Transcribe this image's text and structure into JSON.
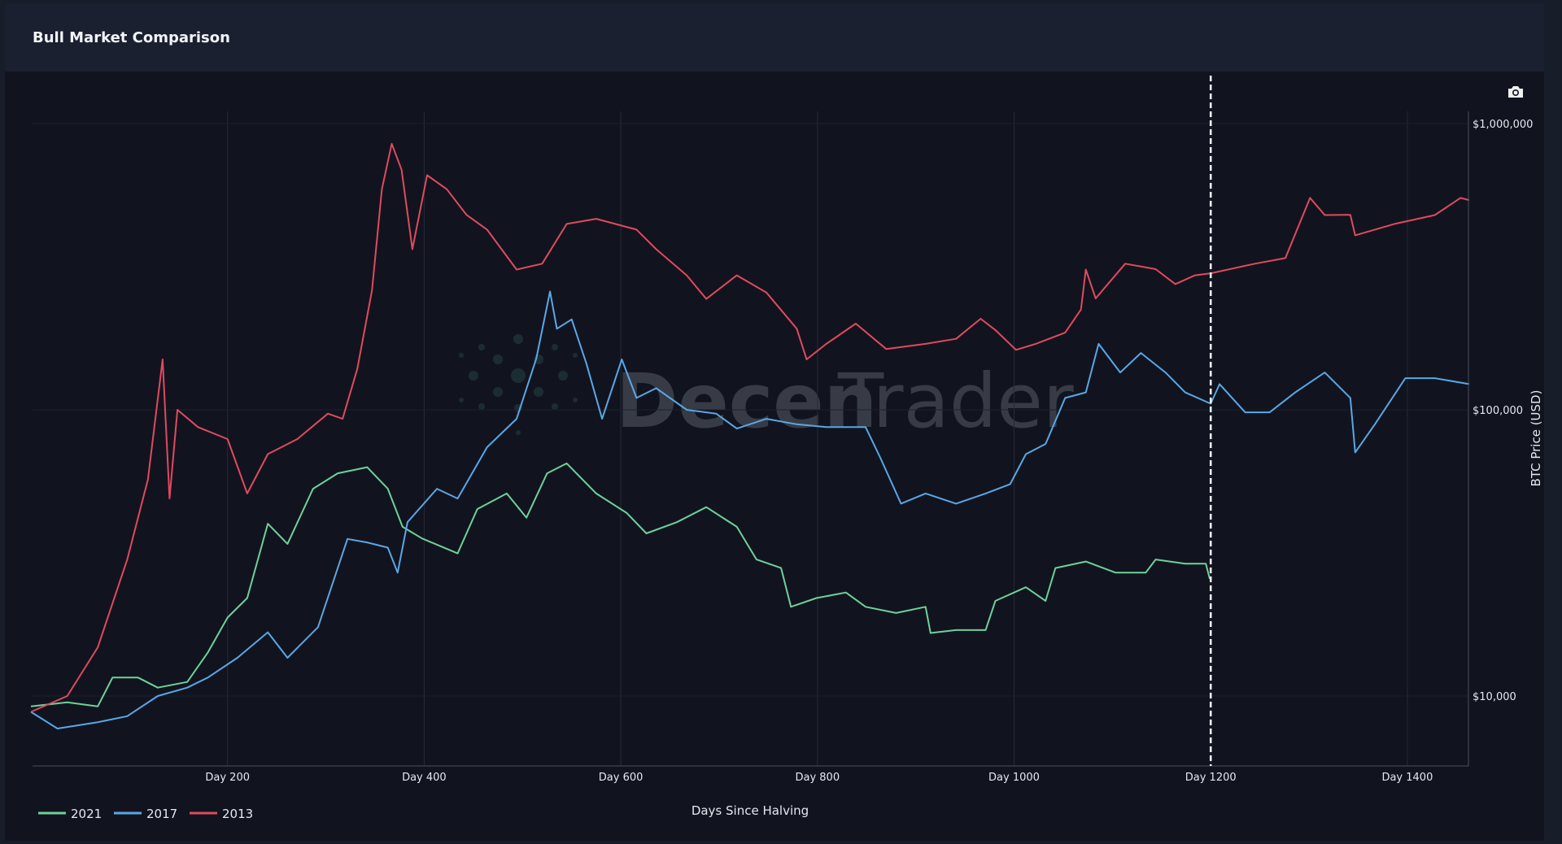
{
  "header": {
    "title": "Bull Market Comparison"
  },
  "toolbar": {
    "icon": "camera-icon"
  },
  "watermark": {
    "part1": "Decen",
    "part2": "Trader"
  },
  "chart_data": {
    "type": "line",
    "title": "Bull Market Comparison",
    "xlabel": "Days Since Halving",
    "ylabel": "BTC Price (USD)",
    "yscale": "log",
    "xlim": [
      0,
      1475
    ],
    "ylim": [
      5700,
      1100000
    ],
    "x_ticks": [
      200,
      400,
      600,
      800,
      1000,
      1200,
      1400
    ],
    "x_tick_labels": [
      "Day 200",
      "Day 400",
      "Day 600",
      "Day 800",
      "Day 1000",
      "Day 1200",
      "Day 1400"
    ],
    "y_ticks": [
      10000,
      100000,
      1000000
    ],
    "y_tick_labels": [
      "$10,000",
      "$100,000",
      "$1,000,000"
    ],
    "marker_line_day": 1200,
    "legend_position": "bottom-left",
    "grid": true,
    "series": [
      {
        "name": "2021",
        "color": "#6fd19a",
        "x": [
          0,
          37,
          68,
          83,
          109,
          129,
          159,
          180,
          200,
          220,
          241,
          261,
          287,
          312,
          342,
          363,
          378,
          398,
          434,
          454,
          484,
          504,
          525,
          545,
          575,
          606,
          626,
          657,
          687,
          718,
          738,
          763,
          773,
          799,
          829,
          849,
          880,
          910,
          915,
          941,
          971,
          981,
          1012,
          1032,
          1042,
          1073,
          1103,
          1134,
          1144,
          1174,
          1195,
          1199
        ],
        "y": [
          9200,
          9500,
          9200,
          11600,
          11600,
          10700,
          11200,
          14200,
          18800,
          22000,
          40000,
          34000,
          53000,
          60000,
          63000,
          53000,
          39000,
          35500,
          31500,
          45000,
          51000,
          42000,
          60000,
          65000,
          51000,
          43600,
          37000,
          40500,
          45700,
          39000,
          30000,
          28000,
          20500,
          22000,
          23000,
          20500,
          19500,
          20500,
          16600,
          17000,
          17000,
          21500,
          24000,
          21500,
          28000,
          29500,
          27000,
          27000,
          30000,
          29000,
          29000,
          25700
        ]
      },
      {
        "name": "2017",
        "color": "#5aa7e6",
        "x": [
          0,
          27,
          68,
          98,
          129,
          159,
          180,
          210,
          241,
          261,
          292,
          322,
          342,
          363,
          373,
          383,
          413,
          434,
          464,
          494,
          514,
          528,
          535,
          550,
          565,
          581,
          601,
          616,
          636,
          667,
          697,
          718,
          748,
          779,
          809,
          849,
          864,
          885,
          910,
          941,
          971,
          996,
          1012,
          1032,
          1052,
          1073,
          1086,
          1108,
          1129,
          1154,
          1174,
          1200,
          1209,
          1235,
          1260,
          1286,
          1316,
          1342,
          1347,
          1367,
          1398,
          1428,
          1463
        ],
        "y": [
          8800,
          7700,
          8100,
          8500,
          10000,
          10700,
          11600,
          13600,
          16700,
          13600,
          17400,
          35400,
          34400,
          33000,
          27000,
          40500,
          53000,
          49000,
          74000,
          93000,
          151000,
          259000,
          192000,
          207000,
          145000,
          93000,
          150000,
          110000,
          119000,
          100000,
          97000,
          86000,
          93000,
          89000,
          87000,
          87000,
          68000,
          47000,
          51000,
          47000,
          51000,
          55000,
          70000,
          76000,
          110000,
          115000,
          170000,
          135000,
          158000,
          135000,
          115000,
          105000,
          123000,
          98000,
          98000,
          115000,
          135000,
          110000,
          71000,
          89000,
          129000,
          129000,
          123000
        ]
      },
      {
        "name": "2013",
        "color": "#e04a5f",
        "x": [
          0,
          37,
          68,
          98,
          119,
          134,
          141,
          149,
          170,
          200,
          220,
          241,
          271,
          302,
          317,
          332,
          347,
          357,
          367,
          377,
          388,
          403,
          423,
          443,
          464,
          494,
          520,
          545,
          575,
          616,
          636,
          667,
          687,
          718,
          748,
          779,
          789,
          809,
          839,
          870,
          910,
          941,
          966,
          981,
          1002,
          1022,
          1052,
          1068,
          1073,
          1083,
          1113,
          1144,
          1164,
          1184,
          1200,
          1245,
          1276,
          1301,
          1316,
          1342,
          1347,
          1388,
          1428,
          1454,
          1463
        ],
        "y": [
          8800,
          10000,
          14800,
          30000,
          57000,
          150000,
          49000,
          100000,
          87000,
          79000,
          51000,
          70000,
          79000,
          97000,
          93000,
          139000,
          262000,
          590000,
          850000,
          690000,
          364000,
          660000,
          590000,
          480000,
          426000,
          309000,
          324000,
          446000,
          465000,
          426000,
          364000,
          295000,
          244000,
          295000,
          257000,
          192000,
          150000,
          170000,
          200000,
          163000,
          170000,
          177000,
          208000,
          190000,
          162000,
          170000,
          186000,
          224000,
          309000,
          245000,
          324000,
          310000,
          275000,
          295000,
          300000,
          324000,
          339000,
          550000,
          479000,
          480000,
          407000,
          447000,
          479000,
          550000,
          540000
        ]
      }
    ]
  }
}
